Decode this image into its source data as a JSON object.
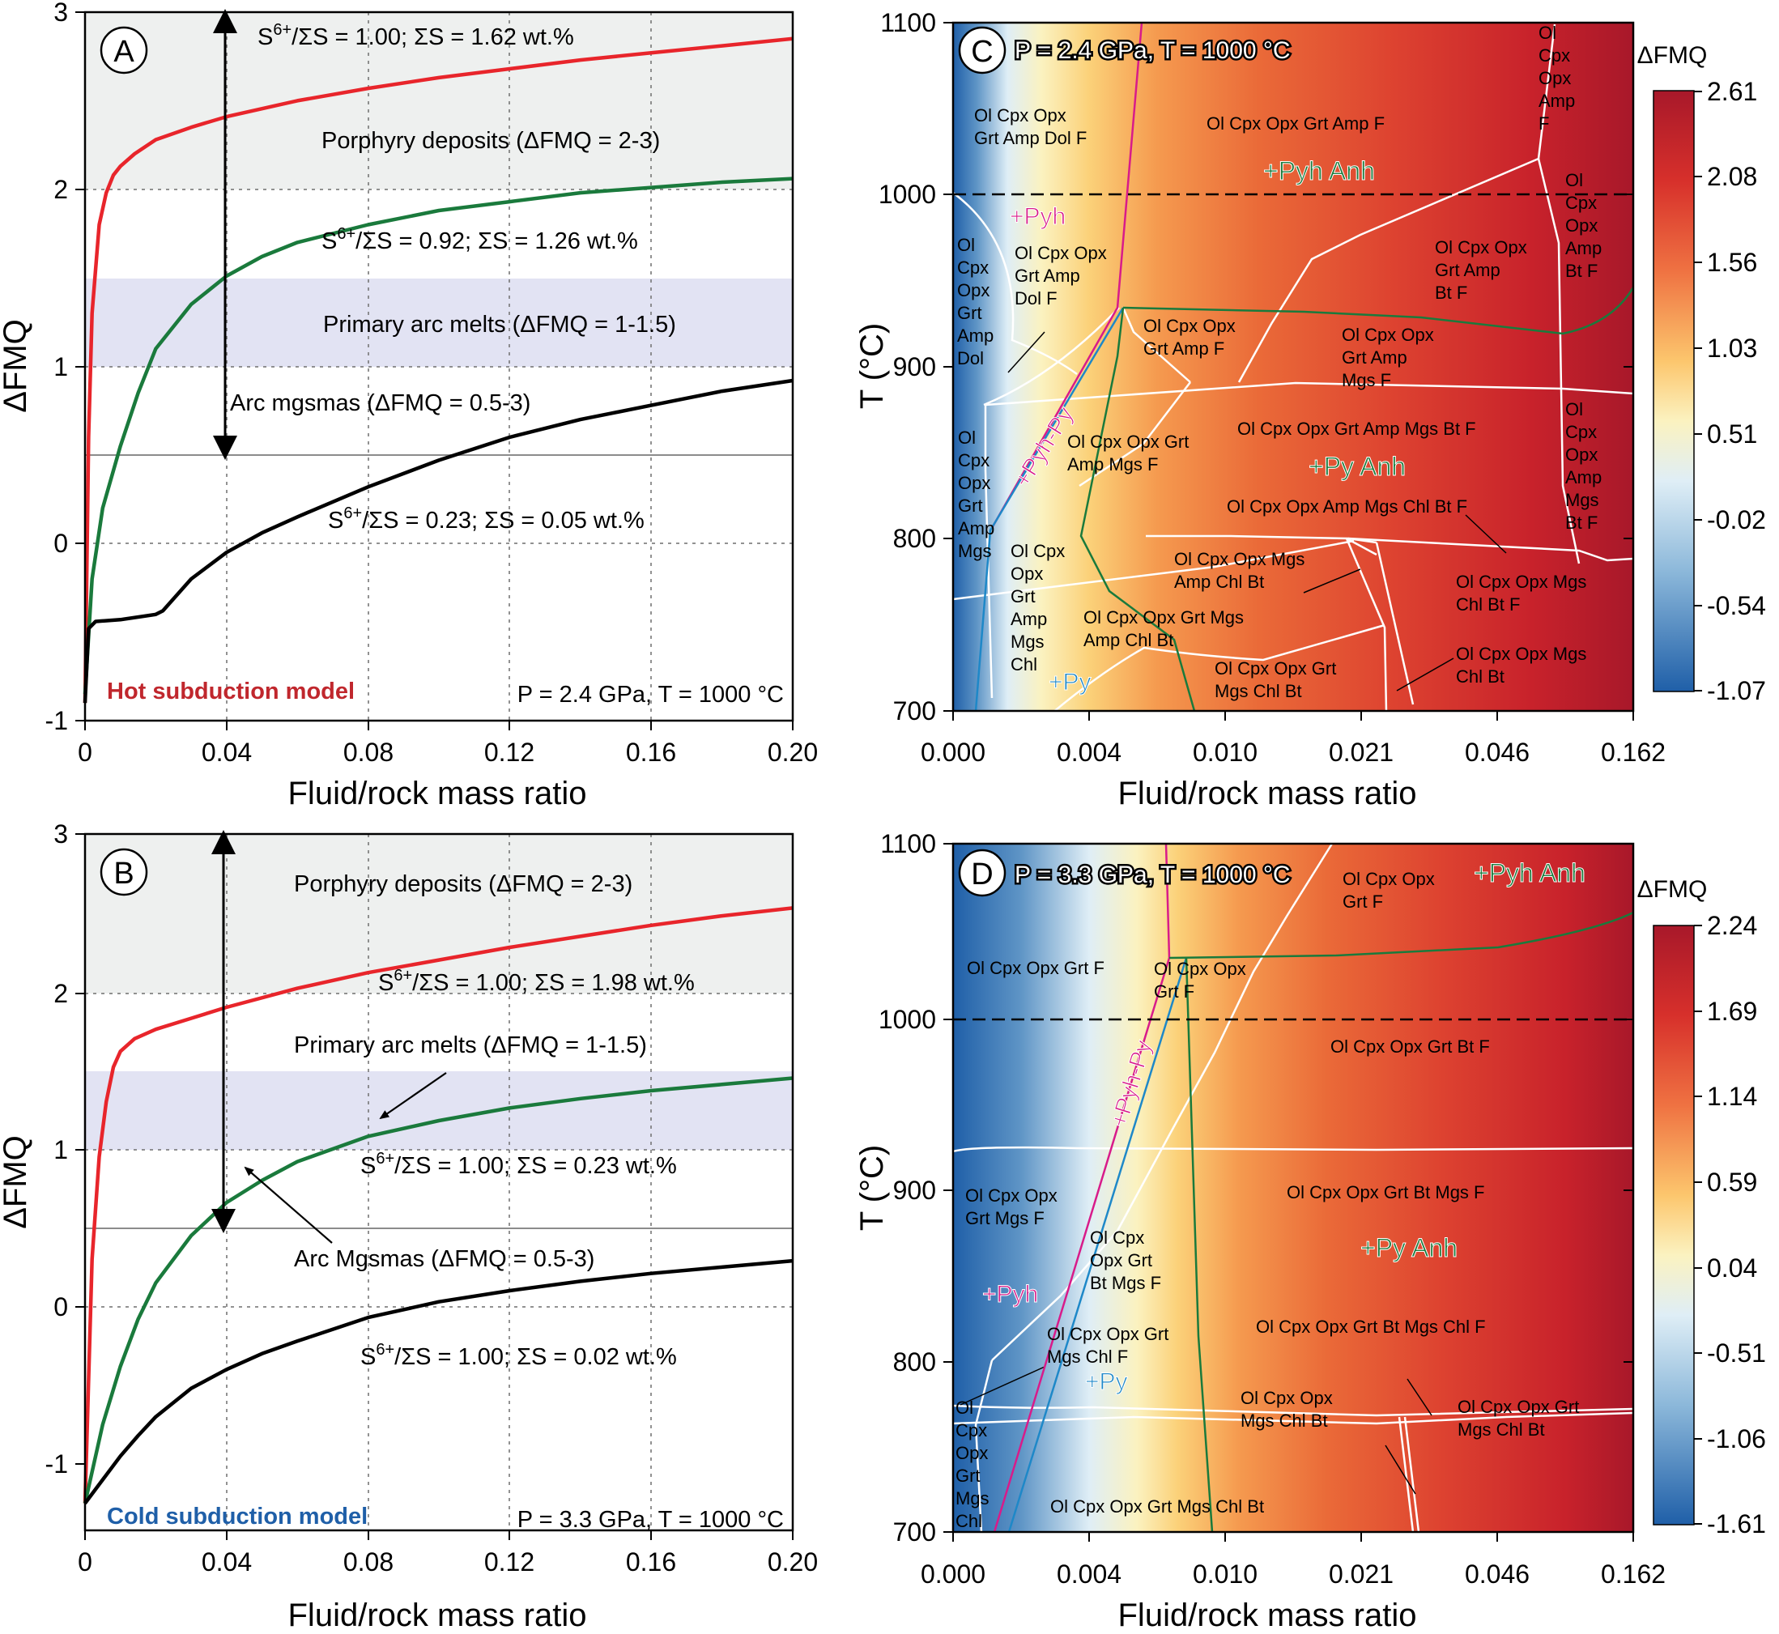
{
  "chart_data": [
    {
      "panel": "A",
      "type": "line",
      "xlabel": "Fluid/rock mass ratio",
      "ylabel": "ΔFMQ",
      "xlim": [
        0,
        0.2
      ],
      "ylim": [
        -1,
        3
      ],
      "xticks": [
        "0",
        "0.04",
        "0.08",
        "0.12",
        "0.16",
        "0.20"
      ],
      "yticks": [
        "-1",
        "0",
        "1",
        "2",
        "3"
      ],
      "grid": true,
      "bands": [
        {
          "label": "Porphyry deposits (ΔFMQ = 2-3)",
          "y0": 2,
          "y1": 3,
          "color": "#eef0ef"
        },
        {
          "label": "Primary arc melts (ΔFMQ = 1-1.5)",
          "y0": 1,
          "y1": 1.5,
          "color": "#e2e3f3"
        }
      ],
      "hline": {
        "y": 0.5,
        "color": "#8c8c8c"
      },
      "arrow": {
        "label": "Arc mgsmas (ΔFMQ = 0.5-3)",
        "x": 0.04,
        "y0": 0.5,
        "y1": 3
      },
      "model_label": "Hot subduction model",
      "model_color": "#c0272d",
      "conditions": "P = 2.4 GPa, T = 1000 °C",
      "series": [
        {
          "annotation": "S6+/ΣS = 1.00; ΣS = 1.62 wt.%",
          "color": "#e8252b",
          "x": [
            0,
            0.001,
            0.002,
            0.004,
            0.006,
            0.008,
            0.01,
            0.014,
            0.02,
            0.03,
            0.04,
            0.06,
            0.08,
            0.1,
            0.12,
            0.14,
            0.16,
            0.18,
            0.2
          ],
          "y": [
            -0.9,
            0.6,
            1.3,
            1.8,
            1.98,
            2.08,
            2.13,
            2.2,
            2.28,
            2.35,
            2.41,
            2.5,
            2.57,
            2.63,
            2.68,
            2.73,
            2.77,
            2.81,
            2.85
          ]
        },
        {
          "annotation": "S6+/ΣS = 0.92; ΣS = 1.26 wt.%",
          "color": "#1a7a3c",
          "x": [
            0,
            0.002,
            0.005,
            0.01,
            0.015,
            0.02,
            0.03,
            0.04,
            0.05,
            0.06,
            0.08,
            0.1,
            0.12,
            0.14,
            0.16,
            0.18,
            0.2
          ],
          "y": [
            -0.85,
            -0.2,
            0.2,
            0.55,
            0.85,
            1.1,
            1.35,
            1.51,
            1.62,
            1.7,
            1.8,
            1.88,
            1.93,
            1.98,
            2.01,
            2.04,
            2.06
          ]
        },
        {
          "annotation": "S6+/ΣS = 0.23; ΣS = 0.05 wt.%",
          "color": "#000000",
          "x": [
            0,
            0.001,
            0.003,
            0.01,
            0.02,
            0.022,
            0.03,
            0.04,
            0.05,
            0.06,
            0.08,
            0.1,
            0.12,
            0.14,
            0.16,
            0.18,
            0.2
          ],
          "y": [
            -0.9,
            -0.48,
            -0.44,
            -0.43,
            -0.4,
            -0.38,
            -0.2,
            -0.05,
            0.06,
            0.15,
            0.32,
            0.47,
            0.6,
            0.7,
            0.78,
            0.86,
            0.92
          ]
        }
      ]
    },
    {
      "panel": "B",
      "type": "line",
      "xlabel": "Fluid/rock mass ratio",
      "ylabel": "ΔFMQ",
      "xlim": [
        0,
        0.2
      ],
      "ylim": [
        -1,
        3
      ],
      "xticks": [
        "0",
        "0.04",
        "0.08",
        "0.12",
        "0.16",
        "0.20"
      ],
      "yticks": [
        "-1",
        "0",
        "1",
        "2",
        "3"
      ],
      "grid": true,
      "bands": [
        {
          "label": "Porphyry deposits (ΔFMQ = 2-3)",
          "y0": 2,
          "y1": 3,
          "color": "#eef0ef"
        },
        {
          "label": "Primary arc melts (ΔFMQ = 1-1.5)",
          "y0": 1,
          "y1": 1.5,
          "color": "#e2e3f3"
        }
      ],
      "hline": {
        "y": 0.5,
        "color": "#8c8c8c"
      },
      "arrow": {
        "label": "Arc Mgsmas (ΔFMQ = 0.5-3)",
        "x": 0.04,
        "y0": 0.5,
        "y1": 3
      },
      "model_label": "Cold subduction model",
      "model_color": "#1f5fa8",
      "conditions": "P = 3.3 GPa, T = 1000 °C",
      "series": [
        {
          "annotation": "S6+/ΣS = 1.00; ΣS = 1.98 wt.%",
          "color": "#e8252b",
          "x": [
            0,
            0.002,
            0.004,
            0.006,
            0.008,
            0.01,
            0.014,
            0.02,
            0.03,
            0.04,
            0.06,
            0.08,
            0.1,
            0.12,
            0.14,
            0.16,
            0.18,
            0.2
          ],
          "y": [
            -1.25,
            0.3,
            0.95,
            1.3,
            1.52,
            1.62,
            1.7,
            1.76,
            1.83,
            1.9,
            2.02,
            2.12,
            2.2,
            2.28,
            2.35,
            2.42,
            2.48,
            2.53
          ]
        },
        {
          "annotation": "S6+/ΣS = 1.00; ΣS = 0.23 wt.%",
          "color": "#1a7a3c",
          "x": [
            0,
            0.005,
            0.01,
            0.015,
            0.02,
            0.03,
            0.04,
            0.05,
            0.06,
            0.08,
            0.1,
            0.12,
            0.14,
            0.16,
            0.18,
            0.2
          ],
          "y": [
            -1.25,
            -0.75,
            -0.38,
            -0.08,
            0.15,
            0.45,
            0.66,
            0.8,
            0.92,
            1.08,
            1.18,
            1.26,
            1.32,
            1.37,
            1.41,
            1.45
          ]
        },
        {
          "annotation": "S6+/ΣS = 1.00; ΣS = 0.02 wt.%",
          "color": "#000000",
          "x": [
            0,
            0.005,
            0.01,
            0.015,
            0.02,
            0.03,
            0.04,
            0.05,
            0.06,
            0.08,
            0.1,
            0.12,
            0.14,
            0.16,
            0.18,
            0.2
          ],
          "y": [
            -1.25,
            -1.1,
            -0.95,
            -0.82,
            -0.7,
            -0.52,
            -0.4,
            -0.3,
            -0.22,
            -0.07,
            0.03,
            0.1,
            0.16,
            0.21,
            0.25,
            0.29
          ]
        }
      ]
    },
    {
      "panel": "C",
      "type": "heatmap",
      "title": "P = 2.4 GPa, T = 1000 °C",
      "xlabel": "Fluid/rock mass ratio",
      "ylabel": "T (°C)",
      "xticks": [
        "0.000",
        "0.004",
        "0.010",
        "0.021",
        "0.046",
        "0.162"
      ],
      "yticks": [
        "700",
        "800",
        "900",
        "1000",
        "1100"
      ],
      "ylim": [
        700,
        1100
      ],
      "colorbar_title": "ΔFMQ",
      "colorbar_ticks": [
        "2.61",
        "2.08",
        "1.56",
        "1.03",
        "0.51",
        "-0.02",
        "-0.54",
        "-1.07"
      ],
      "reference_T": 1000,
      "phase_labels": [
        {
          "label": "+Pyh",
          "color": "#d81b8a"
        },
        {
          "label": "+Pyh Anh",
          "color": "#1a7a3c"
        },
        {
          "label": "+Pyh-Py",
          "color": "#d81b8a"
        },
        {
          "label": "+Py Anh",
          "color": "#1a7a3c"
        },
        {
          "label": "+Py",
          "color": "#1e88c8"
        }
      ],
      "fields": [
        "Ol Cpx Opx Grt Amp Dol F",
        "Ol Cpx Opx Grt Amp F",
        "Ol Cpx Opx Amp F",
        "Ol Cpx Opx Amp Bt F",
        "Ol Cpx Opx Grt Amp Dol F",
        "Ol Cpx Opx Grt Amp Dol",
        "Ol Cpx Opx Grt Amp Bt F",
        "Ol Cpx Opx Grt Amp F",
        "Ol Cpx Opx Grt Amp Mgs F",
        "Ol Cpx Opx Grt Amp Mgs Bt F",
        "Ol Cpx Opx Amp Mgs Bt F",
        "Ol Cpx Opx Grt Amp Mgs",
        "Ol Cpx Opx Grt Amp Mgs F",
        "Ol Cpx Opx Amp Mgs Chl Bt F",
        "Ol Cpx Opx Grt Amp Mgs Chl",
        "Ol Cpx Opx Mgs Amp Chl Bt",
        "Ol Cpx Opx Grt Mgs Amp Chl Bt",
        "Ol Cpx Opx Mgs Chl Bt F",
        "Ol Cpx Opx Grt Mgs Chl Bt",
        "Ol Cpx Opx Mgs Chl Bt"
      ]
    },
    {
      "panel": "D",
      "type": "heatmap",
      "title": "P = 3.3 GPa, T = 1000 °C",
      "xlabel": "Fluid/rock mass ratio",
      "ylabel": "T (°C)",
      "xticks": [
        "0.000",
        "0.004",
        "0.010",
        "0.021",
        "0.046",
        "0.162"
      ],
      "yticks": [
        "700",
        "800",
        "900",
        "1000",
        "1100"
      ],
      "ylim": [
        700,
        1100
      ],
      "colorbar_title": "ΔFMQ",
      "colorbar_ticks": [
        "2.24",
        "1.69",
        "1.14",
        "0.59",
        "0.04",
        "-0.51",
        "-1.06",
        "-1.61"
      ],
      "reference_T": 1000,
      "phase_labels": [
        {
          "label": "+Pyh Anh",
          "color": "#1a7a3c"
        },
        {
          "label": "+Pyh-Py",
          "color": "#d81b8a"
        },
        {
          "label": "+Pyh",
          "color": "#d81b8a"
        },
        {
          "label": "+Py Anh",
          "color": "#1a7a3c"
        },
        {
          "label": "+Py",
          "color": "#1e88c8"
        }
      ],
      "fields": [
        "Ol Cpx Opx Grt F",
        "Ol Cpx Opx Grt F",
        "Ol Cpx Opx Grt F",
        "Ol Cpx Opx Grt Bt F",
        "Ol Cpx Opx Grt Mgs F",
        "Ol Cpx Opx Grt Bt Mgs F",
        "Ol Cpx Opx Grt Bt Mgs F",
        "Ol Cpx Opx Grt Mgs Chl F",
        "Ol Cpx Opx Grt Bt Mgs Chl F",
        "Ol Cpx Opx Grt Mgs Chl",
        "Ol Cpx Opx Mgs Chl Bt",
        "Ol Cpx Opx Grt Mgs Chl Bt",
        "Ol Cpx Opx Grt Mgs Chl Bt"
      ]
    }
  ],
  "text": {
    "panel_a": "A",
    "panel_b": "B",
    "panel_c": "C",
    "panel_d": "D",
    "xlabel": "Fluid/rock mass ratio",
    "ylabel_fmq": "ΔFMQ",
    "ylabel_t": "T (°C)",
    "colorbar_title": "ΔFMQ",
    "a": {
      "porphyry": "Porphyry deposits (ΔFMQ = 2-3)",
      "arc_melts": "Primary arc melts (ΔFMQ = 1-1.5)",
      "arc_mgsmas": "Arc mgsmas (ΔFMQ = 0.5-3)",
      "red_ann": {
        "a": "S",
        "sup": "6+",
        "b": "/ΣS = 1.00; ΣS = 1.62 wt.%"
      },
      "green_ann": {
        "a": "S",
        "sup": "6+",
        "b": "/ΣS = 0.92; ΣS = 1.26 wt.%"
      },
      "black_ann": {
        "a": "S",
        "sup": "6+",
        "b": "/ΣS = 0.23; ΣS = 0.05 wt.%"
      },
      "model": "Hot subduction model",
      "conditions": "P = 2.4 GPa, T = 1000 °C"
    },
    "b": {
      "porphyry": "Porphyry deposits (ΔFMQ = 2-3)",
      "arc_melts": "Primary arc melts (ΔFMQ = 1-1.5)",
      "arc_mgsmas": "Arc Mgsmas (ΔFMQ = 0.5-3)",
      "red_ann": {
        "a": "S",
        "sup": "6+",
        "b": "/ΣS = 1.00; ΣS = 1.98 wt.%"
      },
      "green_ann": {
        "a": "S",
        "sup": "6+",
        "b": "/ΣS = 1.00; ΣS = 0.23 wt.%"
      },
      "black_ann": {
        "a": "S",
        "sup": "6+",
        "b": "/ΣS = 1.00; ΣS = 0.02 wt.%"
      },
      "model": "Cold subduction model",
      "conditions": "P = 3.3 GPa, T = 1000 °C"
    }
  },
  "fields_c": [
    [
      "Ol Cpx Opx",
      "Grt Amp Dol F"
    ],
    [
      "Ol Cpx Opx Grt Amp F"
    ],
    [
      "Ol",
      "Cpx",
      "Opx",
      "Amp",
      "F"
    ],
    [
      "Ol",
      "Cpx",
      "Opx",
      "Amp",
      "Bt F"
    ],
    [
      "Ol Cpx Opx",
      "Grt Amp",
      "Dol F"
    ],
    [
      "Ol",
      "Cpx",
      "Opx",
      "Grt",
      "Amp",
      "Dol"
    ],
    [
      "Ol Cpx Opx",
      "Grt Amp",
      "Bt F"
    ],
    [
      "Ol Cpx Opx",
      "Grt Amp F"
    ],
    [
      "Ol Cpx Opx Grt",
      "Amp Mgs F"
    ],
    [
      "Ol Cpx Opx Grt Amp Mgs Bt F"
    ],
    [
      "Ol",
      "Cpx",
      "Opx",
      "Amp",
      "Mgs",
      "Bt F"
    ],
    [
      "Ol",
      "Cpx",
      "Opx",
      "Grt",
      "Amp",
      "Mgs"
    ],
    [
      "Ol Cpx Opx",
      "Grt Amp",
      "Mgs F"
    ],
    [
      "Ol Cpx Opx Amp Mgs Chl Bt F"
    ],
    [
      "Ol Cpx",
      "Opx",
      "Grt",
      "Amp",
      "Mgs",
      "Chl"
    ],
    [
      "Ol Cpx Opx Mgs",
      "Amp Chl Bt"
    ],
    [
      "Ol Cpx Opx Grt Mgs",
      "Amp Chl Bt"
    ],
    [
      "Ol Cpx Opx Mgs",
      "Chl Bt F"
    ],
    [
      "Ol Cpx Opx Grt",
      "Mgs Chl Bt"
    ],
    [
      "Ol Cpx Opx Mgs",
      "Chl Bt"
    ]
  ],
  "fields_d": [
    [
      "Ol Cpx Opx Grt F"
    ],
    [
      "Ol Cpx Opx",
      "Grt F"
    ],
    [
      "Ol Cpx Opx",
      "Grt F"
    ],
    [
      "Ol Cpx Opx Grt Bt F"
    ],
    [
      "Ol Cpx Opx",
      "Grt Mgs F"
    ],
    [
      "Ol Cpx Opx Grt Bt Mgs F"
    ],
    [
      "Ol Cpx",
      "Opx Grt",
      "Bt Mgs F"
    ],
    [
      "Ol Cpx Opx Grt",
      "Mgs Chl F"
    ],
    [
      "Ol Cpx Opx Grt Bt Mgs Chl F"
    ],
    [
      "Ol",
      "Cpx",
      "Opx",
      "Grt",
      "Mgs",
      "Chl"
    ],
    [
      "Ol Cpx Opx",
      "Mgs Chl Bt"
    ],
    [
      "Ol Cpx Opx Grt",
      "Mgs Chl Bt"
    ],
    [
      "Ol Cpx Opx Grt Mgs Chl Bt"
    ]
  ]
}
